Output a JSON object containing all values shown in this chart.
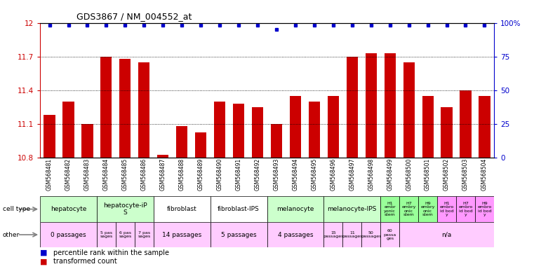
{
  "title": "GDS3867 / NM_004552_at",
  "samples": [
    "GSM568481",
    "GSM568482",
    "GSM568483",
    "GSM568484",
    "GSM568485",
    "GSM568486",
    "GSM568487",
    "GSM568488",
    "GSM568489",
    "GSM568490",
    "GSM568491",
    "GSM568492",
    "GSM568493",
    "GSM568494",
    "GSM568495",
    "GSM568496",
    "GSM568497",
    "GSM568498",
    "GSM568499",
    "GSM568500",
    "GSM568501",
    "GSM568502",
    "GSM568503",
    "GSM568504"
  ],
  "bar_values": [
    11.18,
    11.3,
    11.1,
    11.7,
    11.68,
    11.65,
    10.82,
    11.08,
    11.02,
    11.3,
    11.28,
    11.25,
    11.1,
    11.35,
    11.3,
    11.35,
    11.7,
    11.73,
    11.73,
    11.65,
    11.35,
    11.25,
    11.4,
    11.35
  ],
  "percentile_values": [
    100,
    100,
    100,
    100,
    100,
    100,
    100,
    100,
    100,
    100,
    100,
    100,
    95,
    100,
    100,
    100,
    100,
    100,
    100,
    100,
    100,
    100,
    100,
    100
  ],
  "bar_color": "#cc0000",
  "dot_color": "#0000cc",
  "ylim": [
    10.8,
    12.0
  ],
  "yticks": [
    10.8,
    11.1,
    11.4,
    11.7,
    12.0
  ],
  "ytick_labels": [
    "10.8",
    "11.1",
    "11.4",
    "11.7",
    "12"
  ],
  "right_yticks": [
    0,
    25,
    50,
    75,
    100
  ],
  "right_ytick_labels": [
    "0",
    "25",
    "50",
    "75",
    "100%"
  ],
  "cell_type_groups": [
    {
      "label": "hepatocyte",
      "start": 0,
      "end": 3,
      "color": "#ccffcc"
    },
    {
      "label": "hepatocyte-iP\nS",
      "start": 3,
      "end": 6,
      "color": "#ccffcc"
    },
    {
      "label": "fibroblast",
      "start": 6,
      "end": 9,
      "color": "#ffffff"
    },
    {
      "label": "fibroblast-IPS",
      "start": 9,
      "end": 12,
      "color": "#ffffff"
    },
    {
      "label": "melanocyte",
      "start": 12,
      "end": 15,
      "color": "#ccffcc"
    },
    {
      "label": "melanocyte-IPS",
      "start": 15,
      "end": 18,
      "color": "#ccffcc"
    },
    {
      "label": "H1\nembr\nyonic\nstem",
      "start": 18,
      "end": 19,
      "color": "#99ff99"
    },
    {
      "label": "H7\nembry\nonic\nstem",
      "start": 19,
      "end": 20,
      "color": "#99ff99"
    },
    {
      "label": "H9\nembry\nonic\nstem",
      "start": 20,
      "end": 21,
      "color": "#99ff99"
    },
    {
      "label": "H1\nembro\nid bod\ny",
      "start": 21,
      "end": 22,
      "color": "#ff99ff"
    },
    {
      "label": "H7\nembro\nid bod\ny",
      "start": 22,
      "end": 23,
      "color": "#ff99ff"
    },
    {
      "label": "H9\nembro\nid bod\ny",
      "start": 23,
      "end": 24,
      "color": "#ff99ff"
    }
  ],
  "other_groups": [
    {
      "label": "0 passages",
      "start": 0,
      "end": 3,
      "color": "#ffccff"
    },
    {
      "label": "5 pas\nsages",
      "start": 3,
      "end": 4,
      "color": "#ffccff"
    },
    {
      "label": "6 pas\nsages",
      "start": 4,
      "end": 5,
      "color": "#ffccff"
    },
    {
      "label": "7 pas\nsages",
      "start": 5,
      "end": 6,
      "color": "#ffccff"
    },
    {
      "label": "14 passages",
      "start": 6,
      "end": 9,
      "color": "#ffccff"
    },
    {
      "label": "5 passages",
      "start": 9,
      "end": 12,
      "color": "#ffccff"
    },
    {
      "label": "4 passages",
      "start": 12,
      "end": 15,
      "color": "#ffccff"
    },
    {
      "label": "15\npassages",
      "start": 15,
      "end": 16,
      "color": "#ffccff"
    },
    {
      "label": "11\npassages",
      "start": 16,
      "end": 17,
      "color": "#ffccff"
    },
    {
      "label": "50\npassages",
      "start": 17,
      "end": 18,
      "color": "#ffccff"
    },
    {
      "label": "60\npassa\nges",
      "start": 18,
      "end": 19,
      "color": "#ffccff"
    },
    {
      "label": "n/a",
      "start": 19,
      "end": 24,
      "color": "#ffccff"
    }
  ],
  "fig_width": 7.61,
  "fig_height": 3.84,
  "dpi": 100
}
